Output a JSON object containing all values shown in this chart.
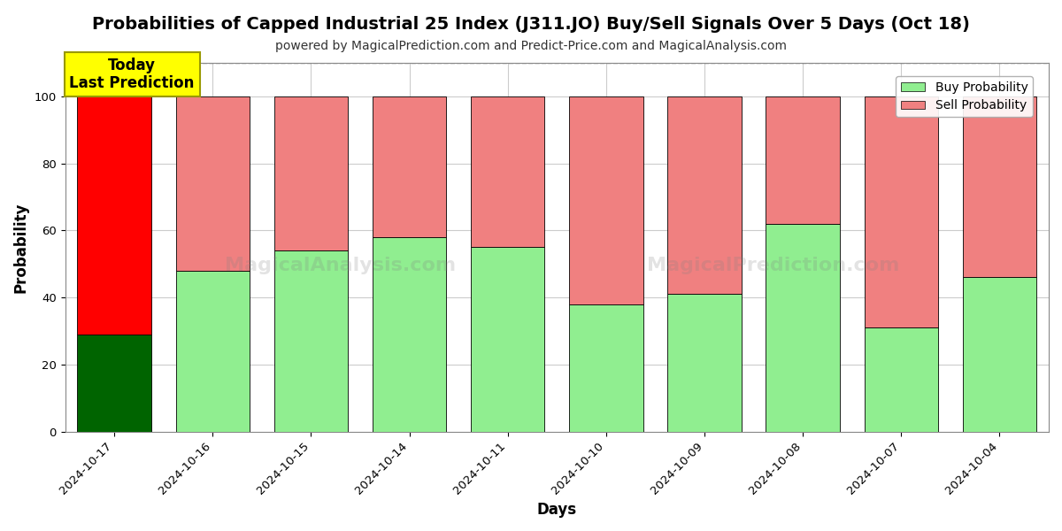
{
  "title": "Probabilities of Capped Industrial 25 Index (J311.JO) Buy/Sell Signals Over 5 Days (Oct 18)",
  "subtitle": "powered by MagicalPrediction.com and Predict-Price.com and MagicalAnalysis.com",
  "xlabel": "Days",
  "ylabel": "Probability",
  "dates": [
    "2024-10-17",
    "2024-10-16",
    "2024-10-15",
    "2024-10-14",
    "2024-10-11",
    "2024-10-10",
    "2024-10-09",
    "2024-10-08",
    "2024-10-07",
    "2024-10-04"
  ],
  "buy_values": [
    29,
    48,
    54,
    58,
    55,
    38,
    41,
    62,
    31,
    46
  ],
  "sell_values": [
    71,
    52,
    46,
    42,
    45,
    62,
    59,
    38,
    69,
    54
  ],
  "today_buy_color": "#006400",
  "today_sell_color": "#ff0000",
  "buy_color": "#90ee90",
  "sell_color": "#f08080",
  "today_annotation_text": "Today\nLast Prediction",
  "today_annotation_bg": "#ffff00",
  "legend_buy_label": "Buy Probability",
  "legend_sell_label": "Sell Probability",
  "ylim": [
    0,
    110
  ],
  "yticks": [
    0,
    20,
    40,
    60,
    80,
    100
  ],
  "dashed_line_y": 110,
  "background_color": "#ffffff",
  "grid_color": "#cccccc",
  "title_fontsize": 14,
  "subtitle_fontsize": 10,
  "axis_label_fontsize": 12,
  "tick_fontsize": 9.5,
  "bar_width": 0.75
}
